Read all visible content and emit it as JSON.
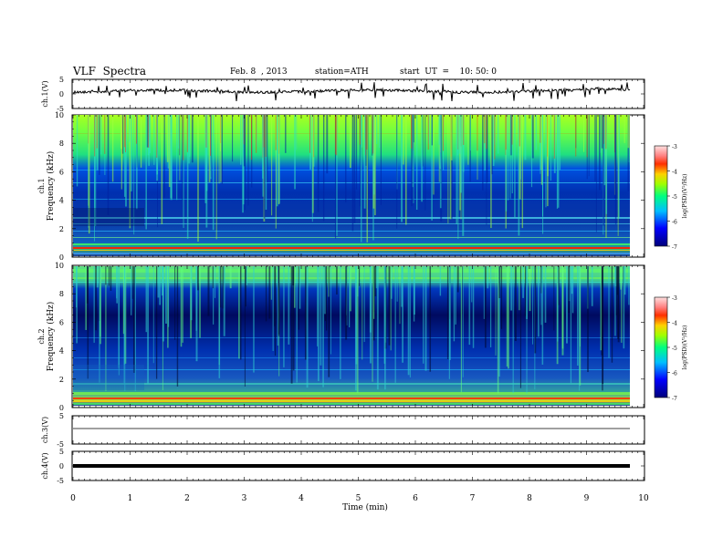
{
  "header": {
    "title": "VLF  Spectra",
    "date": "Feb. 8  , 2013",
    "station": "station=ATH",
    "start": "start  UT  =    10: 50: 0"
  },
  "chart_data": [
    {
      "type": "line",
      "panel": "ch1-waveform",
      "ylabel": "ch.1(V)",
      "yticks": [
        "5",
        "0",
        "-5"
      ],
      "ylim": [
        -5,
        5
      ],
      "description_level": "noisy signal around ~1 V with frequent negative spikes"
    },
    {
      "type": "heatmap",
      "panel": "ch1-spectrogram",
      "ylabel": "Frequency  (kHz)",
      "channel_label": "ch.1",
      "yticks": [
        "0",
        "2",
        "4",
        "6",
        "8",
        "10"
      ],
      "ylim": [
        0,
        10
      ],
      "colorbar": {
        "label": "log(PSD)(V²/Hz)",
        "ticks": [
          "-3",
          "-4",
          "-5",
          "-6",
          "-7"
        ],
        "range": [
          -7,
          -3
        ]
      }
    },
    {
      "type": "heatmap",
      "panel": "ch2-spectrogram",
      "ylabel": "Frequency  (kHz)",
      "channel_label": "ch.2",
      "yticks": [
        "0",
        "2",
        "4",
        "6",
        "8",
        "10"
      ],
      "ylim": [
        0,
        10
      ],
      "colorbar": {
        "label": "log(PSD)(V²/Hz)",
        "ticks": [
          "-3",
          "-4",
          "-5",
          "-6",
          "-7"
        ],
        "range": [
          -7,
          -3
        ]
      }
    },
    {
      "type": "line",
      "panel": "ch3-waveform",
      "ylabel": "ch.3(V)",
      "yticks": [
        "5",
        "-5"
      ],
      "ylim": [
        -5,
        5
      ]
    },
    {
      "type": "line",
      "panel": "ch4-waveform",
      "ylabel": "ch.4(V)",
      "yticks": [
        "5",
        "0",
        "-5"
      ],
      "ylim": [
        -5,
        5
      ]
    }
  ],
  "xaxis": {
    "label": "Time  (min)",
    "ticks": [
      "0",
      "1",
      "2",
      "3",
      "4",
      "5",
      "6",
      "7",
      "8",
      "9",
      "10"
    ],
    "xlim": [
      0,
      10
    ]
  }
}
